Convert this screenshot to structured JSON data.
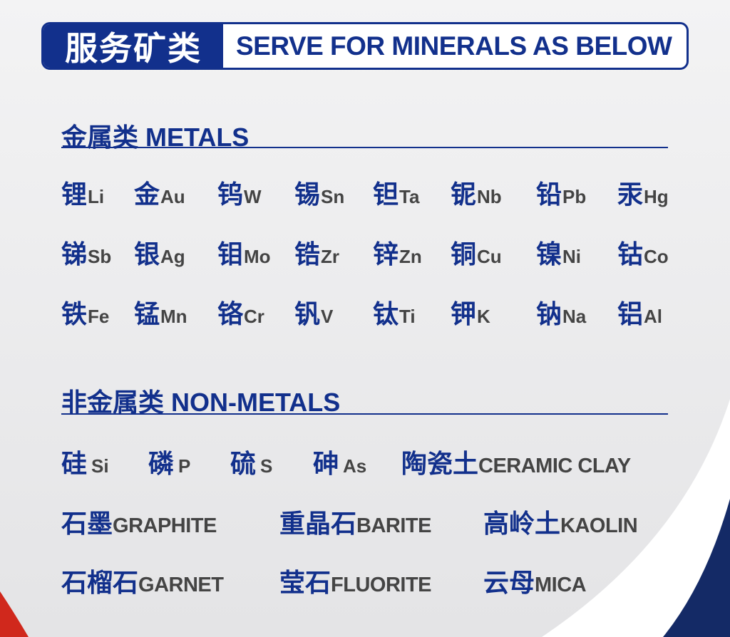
{
  "header": {
    "title_cn": "服务矿类",
    "title_en": "SERVE FOR MINERALS AS BELOW"
  },
  "metals": {
    "heading": "金属类 METALS",
    "items": [
      {
        "cn": "锂",
        "sym": "Li"
      },
      {
        "cn": "金",
        "sym": "Au"
      },
      {
        "cn": "钨",
        "sym": "W"
      },
      {
        "cn": "锡",
        "sym": "Sn"
      },
      {
        "cn": "钽",
        "sym": "Ta"
      },
      {
        "cn": "铌",
        "sym": "Nb"
      },
      {
        "cn": "铅",
        "sym": "Pb"
      },
      {
        "cn": "汞",
        "sym": "Hg"
      },
      {
        "cn": "锑",
        "sym": "Sb"
      },
      {
        "cn": "银",
        "sym": "Ag"
      },
      {
        "cn": "钼",
        "sym": "Mo"
      },
      {
        "cn": "锆",
        "sym": "Zr"
      },
      {
        "cn": "锌",
        "sym": "Zn"
      },
      {
        "cn": "铜",
        "sym": "Cu"
      },
      {
        "cn": "镍",
        "sym": "Ni"
      },
      {
        "cn": "钴",
        "sym": "Co"
      },
      {
        "cn": "铁",
        "sym": "Fe"
      },
      {
        "cn": "锰",
        "sym": "Mn"
      },
      {
        "cn": "铬",
        "sym": "Cr"
      },
      {
        "cn": "钒",
        "sym": "V"
      },
      {
        "cn": "钛",
        "sym": "Ti"
      },
      {
        "cn": "钾",
        "sym": "K"
      },
      {
        "cn": "钠",
        "sym": "Na"
      },
      {
        "cn": "铝",
        "sym": "Al"
      }
    ]
  },
  "nonmetals": {
    "heading": "非金属类 NON-METALS",
    "items": [
      {
        "cn": "硅",
        "sym": "Si"
      },
      {
        "cn": "磷",
        "sym": "P"
      },
      {
        "cn": "硫",
        "sym": "S"
      },
      {
        "cn": "砷",
        "sym": "As"
      },
      {
        "cn": "陶瓷土",
        "sym": "CERAMIC CLAY"
      },
      {
        "cn": "石墨",
        "sym": "GRAPHITE"
      },
      {
        "cn": "重晶石",
        "sym": "BARITE"
      },
      {
        "cn": "高岭土",
        "sym": "KAOLIN"
      },
      {
        "cn": "石榴石",
        "sym": "GARNET"
      },
      {
        "cn": "莹石",
        "sym": "FLUORITE"
      },
      {
        "cn": "云母",
        "sym": "MICA"
      }
    ]
  },
  "colors": {
    "brand_blue": "#12308c",
    "symbol_gray": "#444444",
    "accent_red": "#d0281c"
  }
}
